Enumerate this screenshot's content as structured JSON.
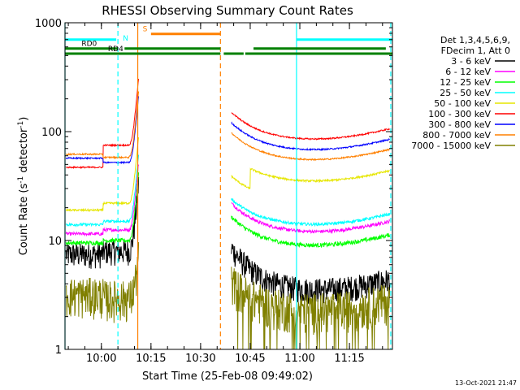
{
  "chart_data": {
    "type": "line",
    "title": "RHESSI Observing Summary Count Rates",
    "xlabel": "Start Time (25-Feb-08 09:49:02)",
    "ylabel_main": "Count Rate (s",
    "ylabel_sup1": "-1",
    "ylabel_mid": " detector",
    "ylabel_sup2": "-1",
    "ylabel_end": ")",
    "footer": "13-Oct-2021 21:47",
    "x_range_minutes": [
      0,
      99
    ],
    "ylim": [
      1,
      1000
    ],
    "y_scale": "log",
    "x_ticks": [
      {
        "label": "10:00",
        "t": 11
      },
      {
        "label": "10:15",
        "t": 26
      },
      {
        "label": "10:30",
        "t": 41
      },
      {
        "label": "10:45",
        "t": 56
      },
      {
        "label": "11:00",
        "t": 71
      },
      {
        "label": "11:15",
        "t": 86
      }
    ],
    "y_ticks": [
      {
        "label": "1",
        "value": 1
      },
      {
        "label": "10",
        "value": 10
      },
      {
        "label": "100",
        "value": 100
      },
      {
        "label": "1000",
        "value": 1000
      }
    ],
    "legend": {
      "header": [
        "Det 1,3,4,5,6,9,",
        "FDecim 1, Att 0"
      ],
      "placement": "right"
    },
    "series": [
      {
        "name": "3 - 6 keV",
        "color": "#000000",
        "left": 7.5,
        "right": 3.5,
        "pre": 8.0,
        "recov": 2,
        "noise": 0.09
      },
      {
        "name": "6 - 12 keV",
        "color": "#ff00ff",
        "left": 11.5,
        "right": 12.0,
        "pre": 12.5,
        "recov": 1.5,
        "noise": 0.035
      },
      {
        "name": "12 - 25 keV",
        "color": "#00ff00",
        "left": 9.5,
        "right": 9.0,
        "pre": 10.0,
        "recov": 1.5,
        "noise": 0.045
      },
      {
        "name": "25 - 50 keV",
        "color": "#00ffff",
        "left": 14.0,
        "right": 14.0,
        "pre": 15.0,
        "recov": 1.4,
        "noise": 0.03
      },
      {
        "name": "50 - 100 keV",
        "color": "#e6e600",
        "left": 19.0,
        "right": 35.0,
        "pre": 22.0,
        "recov": 1.4,
        "noise": 0.02
      },
      {
        "name": "100 - 300 keV",
        "color": "#ff0000",
        "left": 47.0,
        "right": 85.0,
        "pre": 75.0,
        "recov": 1.45,
        "noise": 0.015
      },
      {
        "name": "300 - 800 keV",
        "color": "#0000ff",
        "left": 57.0,
        "right": 68.0,
        "pre": 52.0,
        "recov": 1.45,
        "noise": 0.015
      },
      {
        "name": "800 - 7000 keV",
        "color": "#ff8000",
        "left": 62.0,
        "right": 55.0,
        "pre": 58.0,
        "recov": 1.45,
        "noise": 0.015
      },
      {
        "name": "7000 - 15000 keV",
        "color": "#808000",
        "left": 3.2,
        "right": 2.3,
        "pre": 3.0,
        "recov": 1.5,
        "noise": 0.14
      }
    ],
    "status_bars": [
      {
        "label": "",
        "color": "#00ffff",
        "segments": [
          [
            0,
            15.5
          ],
          [
            70,
            99
          ]
        ],
        "level": 700,
        "label_at": null
      },
      {
        "label": "S",
        "color": "#ff8000",
        "segments": [
          [
            26,
            47
          ]
        ],
        "level": 790,
        "label_at": 23.5
      },
      {
        "label": "N",
        "color": "#00ffff",
        "segments": [],
        "level": 650,
        "label_at": 17.5
      },
      {
        "label": "RD0",
        "color": "#008000",
        "segments": [
          [
            0,
            16
          ],
          [
            18,
            47
          ],
          [
            57,
            97
          ]
        ],
        "level": 580,
        "label_at": 5
      },
      {
        "label": "RD4",
        "color": "#008000",
        "segments": [
          [
            0,
            47
          ],
          [
            48,
            54
          ],
          [
            54.5,
            99
          ]
        ],
        "level": 520,
        "label_at": 13
      }
    ],
    "vertical_markers": [
      {
        "t": 0,
        "color": "#00ffff",
        "style": "solid"
      },
      {
        "t": 16,
        "color": "#00ffff",
        "style": "dashed"
      },
      {
        "t": 22,
        "color": "#ff8000",
        "style": "solid"
      },
      {
        "t": 47,
        "color": "#ff8000",
        "style": "dashed"
      },
      {
        "t": 70,
        "color": "#00ffff",
        "style": "solid"
      },
      {
        "t": 98.5,
        "color": "#00ffff",
        "style": "dashed"
      }
    ],
    "gaps": [
      [
        22.3,
        50.0
      ]
    ],
    "attenuator_step": {
      "t": 11.5
    },
    "flare": {
      "t0": 19.0,
      "t_peak": 21.5,
      "t1": 22.2
    }
  }
}
